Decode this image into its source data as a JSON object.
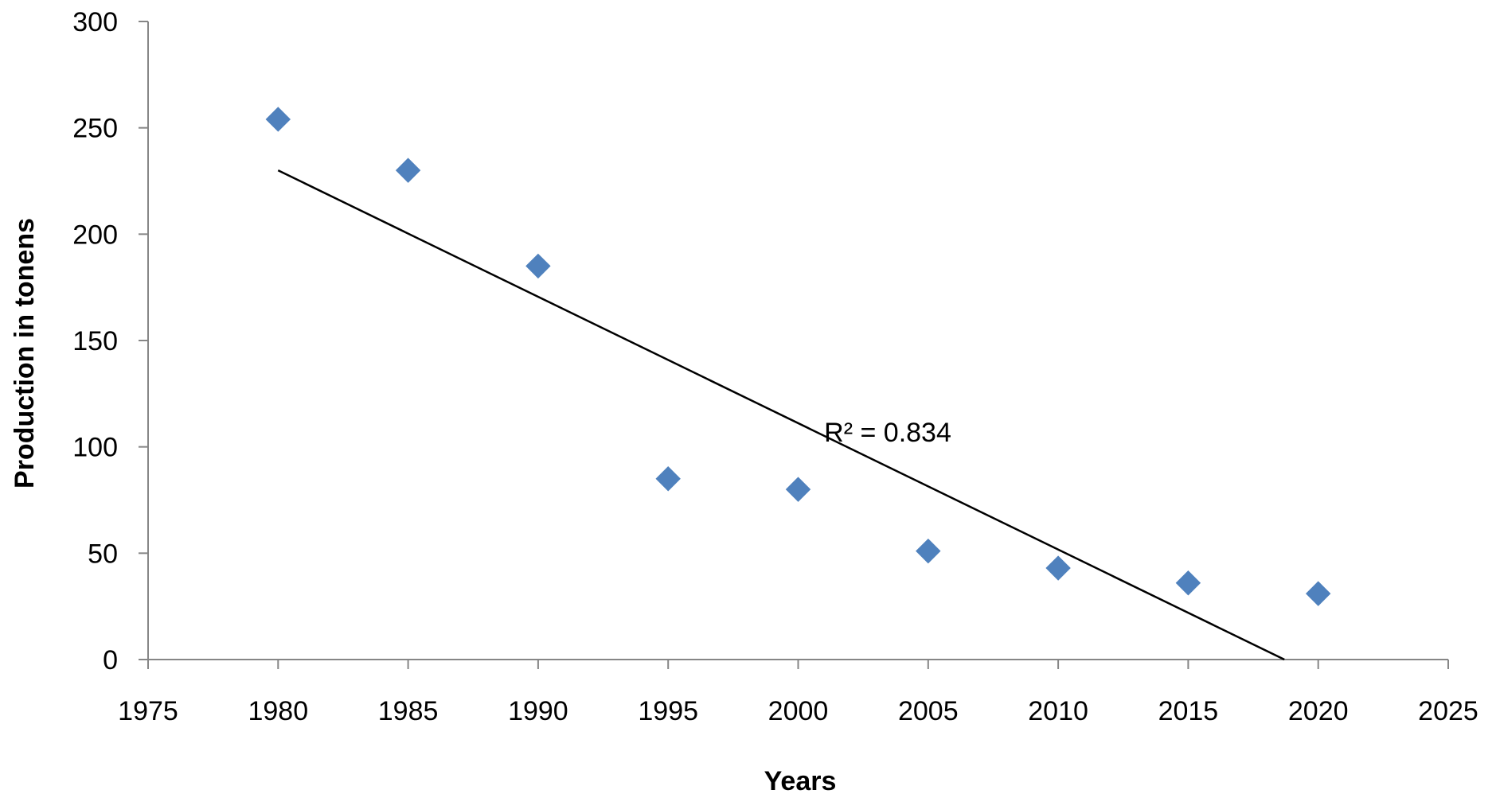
{
  "chart_data": {
    "type": "scatter",
    "xlabel": "Years",
    "ylabel": "Production in tonens",
    "xlim": [
      1975,
      2025
    ],
    "ylim": [
      0,
      300
    ],
    "x_ticks": [
      1975,
      1980,
      1985,
      1990,
      1995,
      2000,
      2005,
      2010,
      2015,
      2020,
      2025
    ],
    "y_ticks": [
      0,
      50,
      100,
      150,
      200,
      250,
      300
    ],
    "grid": false,
    "legend": "none",
    "series": [
      {
        "x": [
          1980,
          1985,
          1990,
          1995,
          2000,
          2005,
          2010,
          2015,
          2020
        ],
        "y": [
          254,
          230,
          185,
          85,
          80,
          51,
          43,
          36,
          31
        ],
        "marker": "diamond",
        "color": "#4F81BD"
      }
    ],
    "trendline": {
      "type": "linear",
      "x": [
        1980,
        2018.7
      ],
      "y": [
        230,
        0
      ],
      "color": "#000000"
    },
    "annotations": [
      {
        "text": "R² = 0.834",
        "x": 2001,
        "y": 107
      }
    ]
  }
}
